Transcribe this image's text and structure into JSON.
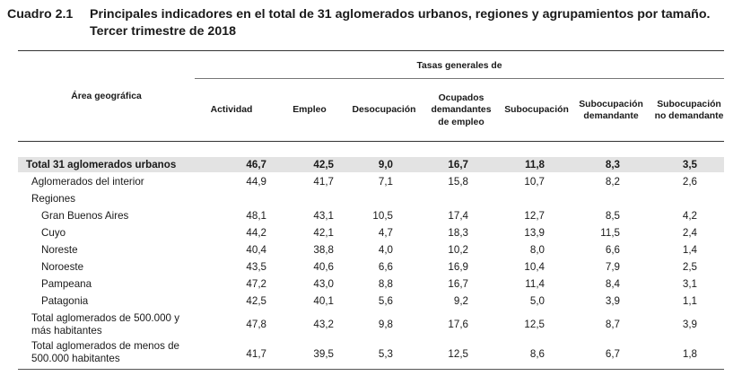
{
  "caption": {
    "label": "Cuadro 2.1",
    "title_line1": "Principales indicadores en el total de 31 aglomerados urbanos, regiones y agrupamientos por tamaño.",
    "title_line2": "Tercer trimestre de 2018"
  },
  "header": {
    "group": "Tasas generales de",
    "area": "Área geográfica",
    "columns": [
      {
        "l1": "Actividad",
        "l2": "",
        "l3": ""
      },
      {
        "l1": "Empleo",
        "l2": "",
        "l3": ""
      },
      {
        "l1": "Desocupación",
        "l2": "",
        "l3": ""
      },
      {
        "l1": "Ocupados",
        "l2": "demandantes",
        "l3": "de empleo"
      },
      {
        "l1": "Subocupación",
        "l2": "",
        "l3": ""
      },
      {
        "l1": "Subocupación",
        "l2": "demandante",
        "l3": ""
      },
      {
        "l1": "Subocupación",
        "l2": "no demandante",
        "l3": ""
      }
    ]
  },
  "rows": [
    {
      "label": "Total 31 aglomerados urbanos",
      "values": [
        "46,7",
        "42,5",
        "9,0",
        "16,7",
        "11,8",
        "8,3",
        "3,5"
      ]
    },
    {
      "label": "Aglomerados del interior",
      "values": [
        "44,9",
        "41,7",
        "7,1",
        "15,8",
        "10,7",
        "8,2",
        "2,6"
      ]
    },
    {
      "label": "Regiones",
      "values": [
        "",
        "",
        "",
        "",
        "",
        "",
        ""
      ]
    },
    {
      "label": "Gran Buenos Aires",
      "values": [
        "48,1",
        "43,1",
        "10,5",
        "17,4",
        "12,7",
        "8,5",
        "4,2"
      ]
    },
    {
      "label": "Cuyo",
      "values": [
        "44,2",
        "42,1",
        "4,7",
        "18,3",
        "13,9",
        "11,5",
        "2,4"
      ]
    },
    {
      "label": "Noreste",
      "values": [
        "40,4",
        "38,8",
        "4,0",
        "10,2",
        "8,0",
        "6,6",
        "1,4"
      ]
    },
    {
      "label": "Noroeste",
      "values": [
        "43,5",
        "40,6",
        "6,6",
        "16,9",
        "10,4",
        "7,9",
        "2,5"
      ]
    },
    {
      "label": "Pampeana",
      "values": [
        "47,2",
        "43,0",
        "8,8",
        "16,7",
        "11,4",
        "8,4",
        "3,1"
      ]
    },
    {
      "label": "Patagonia",
      "values": [
        "42,5",
        "40,1",
        "5,6",
        "9,2",
        "5,0",
        "3,9",
        "1,1"
      ]
    },
    {
      "label_line1": "Total aglomerados de 500.000 y",
      "label_line2": "más habitantes",
      "values": [
        "47,8",
        "43,2",
        "9,8",
        "17,6",
        "12,5",
        "8,7",
        "3,9"
      ]
    },
    {
      "label_line1": "Total aglomerados de menos de",
      "label_line2": "500.000 habitantes",
      "values": [
        "41,7",
        "39,5",
        "5,3",
        "12,5",
        "8,6",
        "6,7",
        "1,8"
      ]
    }
  ]
}
